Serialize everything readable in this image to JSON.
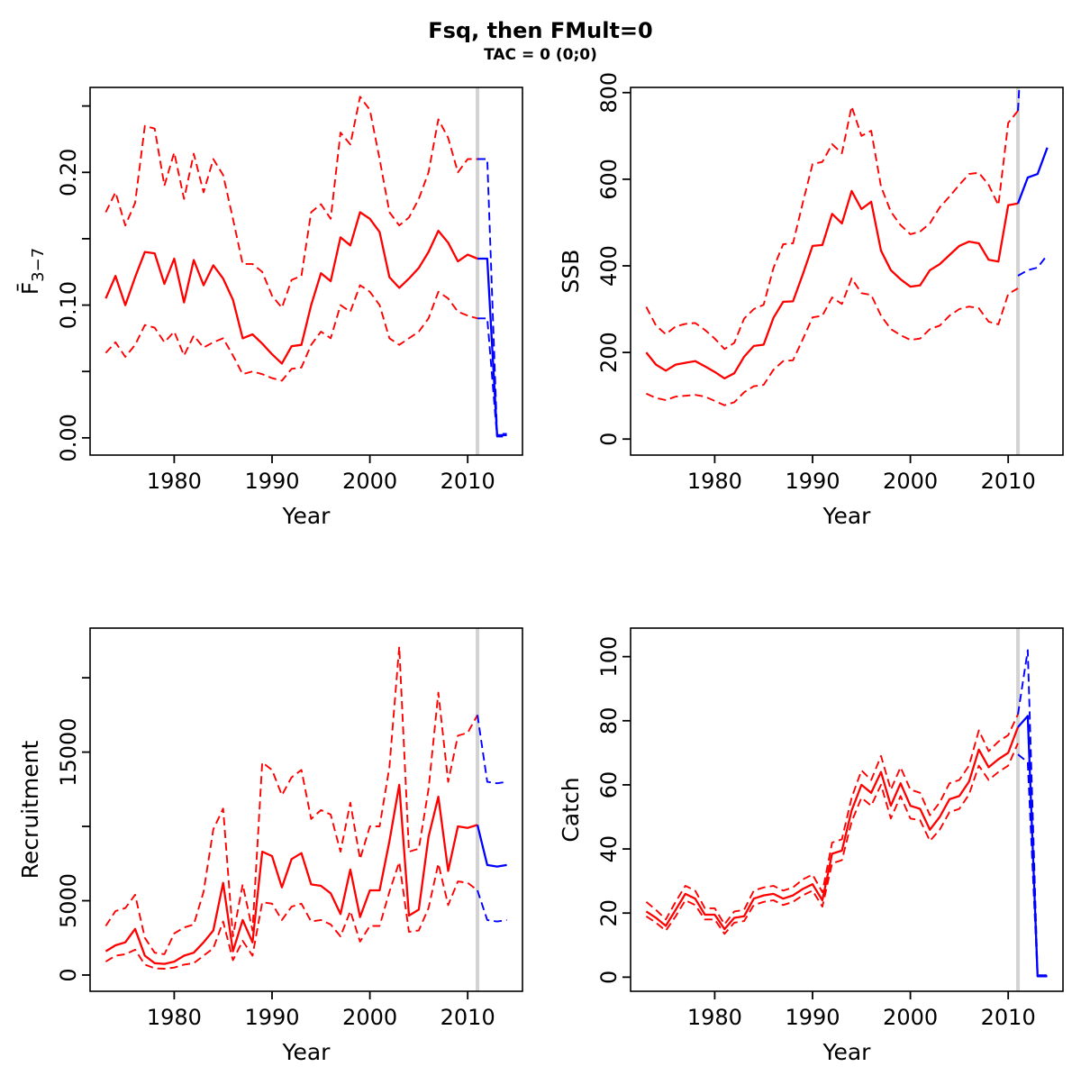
{
  "title": "Fsq, then FMult=0",
  "subtitle": "TAC = 0 (0;0)",
  "colors": {
    "history": "#ff0000",
    "projection": "#0000ff",
    "divider": "#d3d3d3",
    "axis": "#000000",
    "background": "#ffffff"
  },
  "projection_divider_year": 2011,
  "history_years": [
    1973,
    1974,
    1975,
    1976,
    1977,
    1978,
    1979,
    1980,
    1981,
    1982,
    1983,
    1984,
    1985,
    1986,
    1987,
    1988,
    1989,
    1990,
    1991,
    1992,
    1993,
    1994,
    1995,
    1996,
    1997,
    1998,
    1999,
    2000,
    2001,
    2002,
    2003,
    2004,
    2005,
    2006,
    2007,
    2008,
    2009,
    2010,
    2011
  ],
  "projection_years": [
    2011,
    2012,
    2013,
    2014
  ],
  "chart_data": [
    {
      "type": "line",
      "panel": "top-left",
      "title": "",
      "xlabel": "Year",
      "ylabel": {
        "main": "F̄",
        "sub": "3−7"
      },
      "xlim": [
        1971.4,
        2015.6
      ],
      "ylim": [
        -0.013,
        0.264
      ],
      "xticks": {
        "values": [
          1980,
          1990,
          2000,
          2010
        ],
        "labels": [
          "1980",
          "1990",
          "2000",
          "2010"
        ]
      },
      "yticks": {
        "values": [
          0,
          0.05,
          0.1,
          0.15,
          0.2,
          0.25
        ],
        "labels": [
          "0.00",
          "",
          "0.10",
          "",
          "0.20",
          ""
        ]
      },
      "series": [
        {
          "name": "fbar-ci-upper-history",
          "period": "history",
          "style": "dashed",
          "color_key": "history",
          "values": [
            0.17,
            0.185,
            0.16,
            0.177,
            0.235,
            0.233,
            0.19,
            0.215,
            0.18,
            0.214,
            0.185,
            0.21,
            0.198,
            0.165,
            0.131,
            0.131,
            0.125,
            0.107,
            0.098,
            0.119,
            0.122,
            0.17,
            0.176,
            0.165,
            0.23,
            0.221,
            0.257,
            0.247,
            0.21,
            0.17,
            0.16,
            0.166,
            0.18,
            0.2,
            0.24,
            0.226,
            0.2,
            0.21,
            0.21
          ]
        },
        {
          "name": "fbar-ci-lower-history",
          "period": "history",
          "style": "dashed",
          "color_key": "history",
          "values": [
            0.064,
            0.072,
            0.061,
            0.07,
            0.085,
            0.083,
            0.072,
            0.08,
            0.062,
            0.077,
            0.068,
            0.072,
            0.075,
            0.062,
            0.048,
            0.05,
            0.048,
            0.045,
            0.043,
            0.052,
            0.053,
            0.07,
            0.08,
            0.075,
            0.1,
            0.095,
            0.115,
            0.11,
            0.1,
            0.075,
            0.07,
            0.075,
            0.08,
            0.09,
            0.11,
            0.105,
            0.095,
            0.092,
            0.09
          ]
        },
        {
          "name": "fbar-median-history",
          "period": "history",
          "style": "solid",
          "color_key": "history",
          "values": [
            0.105,
            0.122,
            0.1,
            0.121,
            0.14,
            0.139,
            0.116,
            0.135,
            0.102,
            0.134,
            0.115,
            0.13,
            0.12,
            0.104,
            0.075,
            0.078,
            0.071,
            0.063,
            0.056,
            0.069,
            0.07,
            0.1,
            0.124,
            0.118,
            0.151,
            0.145,
            0.17,
            0.165,
            0.155,
            0.121,
            0.113,
            0.12,
            0.128,
            0.14,
            0.156,
            0.147,
            0.133,
            0.138,
            0.135
          ]
        },
        {
          "name": "fbar-ci-upper-projection",
          "period": "projection",
          "style": "dashed",
          "color_key": "projection",
          "values": [
            0.21,
            0.21,
            0.003,
            0.003
          ]
        },
        {
          "name": "fbar-ci-lower-projection",
          "period": "projection",
          "style": "dashed",
          "color_key": "projection",
          "values": [
            0.09,
            0.09,
            0.001,
            0.001
          ]
        },
        {
          "name": "fbar-median-projection",
          "period": "projection",
          "style": "solid",
          "color_key": "projection",
          "values": [
            0.135,
            0.135,
            0.002,
            0.002
          ]
        }
      ]
    },
    {
      "type": "line",
      "panel": "top-right",
      "title": "",
      "xlabel": "Year",
      "ylabel": {
        "main": "SSB",
        "sub": ""
      },
      "xlim": [
        1971.4,
        2015.6
      ],
      "ylim": [
        -37,
        812
      ],
      "xticks": {
        "values": [
          1980,
          1990,
          2000,
          2010
        ],
        "labels": [
          "1980",
          "1990",
          "2000",
          "2010"
        ]
      },
      "yticks": {
        "values": [
          0,
          200,
          400,
          600,
          800
        ],
        "labels": [
          "0",
          "200",
          "400",
          "600",
          "800"
        ]
      },
      "series": [
        {
          "name": "ssb-ci-upper-history",
          "period": "history",
          "style": "dashed",
          "color_key": "history",
          "values": [
            305,
            262,
            242,
            260,
            266,
            268,
            252,
            232,
            208,
            222,
            278,
            300,
            310,
            395,
            450,
            452,
            545,
            635,
            640,
            681,
            660,
            768,
            700,
            712,
            583,
            525,
            494,
            473,
            479,
            498,
            535,
            560,
            587,
            612,
            615,
            587,
            540,
            730,
            758
          ]
        },
        {
          "name": "ssb-ci-lower-history",
          "period": "history",
          "style": "dashed",
          "color_key": "history",
          "values": [
            105,
            95,
            90,
            98,
            100,
            102,
            98,
            88,
            78,
            85,
            108,
            122,
            125,
            160,
            180,
            182,
            230,
            281,
            285,
            327,
            312,
            371,
            337,
            333,
            285,
            254,
            240,
            229,
            232,
            254,
            262,
            285,
            300,
            306,
            302,
            271,
            265,
            335,
            348
          ]
        },
        {
          "name": "ssb-median-history",
          "period": "history",
          "style": "solid",
          "color_key": "history",
          "values": [
            200,
            172,
            158,
            172,
            176,
            180,
            168,
            155,
            140,
            152,
            190,
            215,
            218,
            280,
            317,
            318,
            380,
            446,
            448,
            520,
            498,
            573,
            531,
            548,
            435,
            390,
            369,
            352,
            355,
            390,
            404,
            425,
            446,
            456,
            452,
            414,
            410,
            540,
            544
          ]
        },
        {
          "name": "ssb-ci-upper-projection",
          "period": "projection",
          "style": "dashed",
          "color_key": "projection",
          "values": [
            758,
            1150,
            1150,
            1150
          ]
        },
        {
          "name": "ssb-ci-lower-projection",
          "period": "projection",
          "style": "dashed",
          "color_key": "projection",
          "values": [
            377,
            390,
            396,
            425
          ]
        },
        {
          "name": "ssb-median-projection",
          "period": "projection",
          "style": "solid",
          "color_key": "projection",
          "values": [
            544,
            604,
            612,
            673
          ]
        }
      ]
    },
    {
      "type": "line",
      "panel": "bottom-left",
      "title": "",
      "xlabel": "Year",
      "ylabel": {
        "main": "Recruitment",
        "sub": ""
      },
      "xlim": [
        1971.4,
        2015.6
      ],
      "ylim": [
        -1094,
        23343
      ],
      "xticks": {
        "values": [
          1980,
          1990,
          2000,
          2010
        ],
        "labels": [
          "1980",
          "1990",
          "2000",
          "2010"
        ]
      },
      "yticks": {
        "values": [
          0,
          5000,
          10000,
          15000,
          20000
        ],
        "labels": [
          "0",
          "5000",
          "",
          "15000",
          ""
        ]
      },
      "series": [
        {
          "name": "recruitment-ci-upper-history",
          "period": "history",
          "style": "dashed",
          "color_key": "history",
          "values": [
            3300,
            4300,
            4500,
            5400,
            2500,
            1500,
            1400,
            2800,
            3200,
            3400,
            5600,
            9800,
            11200,
            2600,
            6100,
            3000,
            14300,
            13800,
            12100,
            13300,
            13800,
            10500,
            11100,
            10800,
            8300,
            11600,
            7800,
            10000,
            10000,
            14000,
            22100,
            8300,
            8500,
            12500,
            19000,
            13000,
            16100,
            16300,
            17500
          ]
        },
        {
          "name": "recruitment-ci-lower-history",
          "period": "history",
          "style": "dashed",
          "color_key": "history",
          "values": [
            900,
            1300,
            1400,
            1700,
            700,
            450,
            420,
            500,
            700,
            800,
            1300,
            1800,
            3600,
            1000,
            2300,
            1300,
            4900,
            4800,
            3700,
            4600,
            4800,
            3600,
            3700,
            3400,
            2600,
            4300,
            2250,
            3300,
            3300,
            5600,
            7600,
            2900,
            3000,
            4500,
            7500,
            4700,
            6300,
            6200,
            5700
          ]
        },
        {
          "name": "recruitment-median-history",
          "period": "history",
          "style": "solid",
          "color_key": "history",
          "values": [
            1600,
            2000,
            2200,
            3100,
            1300,
            800,
            750,
            900,
            1300,
            1500,
            2200,
            3000,
            6200,
            1600,
            3700,
            2200,
            8300,
            8000,
            5900,
            7800,
            8200,
            6100,
            6000,
            5500,
            4100,
            7100,
            3900,
            5700,
            5700,
            9000,
            12800,
            4000,
            4400,
            9300,
            12000,
            7000,
            10000,
            9900,
            10100
          ]
        },
        {
          "name": "recruitment-ci-upper-projection",
          "period": "projection",
          "style": "dashed",
          "color_key": "projection",
          "values": [
            17500,
            13000,
            12900,
            13000
          ]
        },
        {
          "name": "recruitment-ci-lower-projection",
          "period": "projection",
          "style": "dashed",
          "color_key": "projection",
          "values": [
            5700,
            3700,
            3600,
            3700
          ]
        },
        {
          "name": "recruitment-median-projection",
          "period": "projection",
          "style": "solid",
          "color_key": "projection",
          "values": [
            10100,
            7400,
            7300,
            7400
          ]
        }
      ]
    },
    {
      "type": "line",
      "panel": "bottom-right",
      "title": "",
      "xlabel": "Year",
      "ylabel": {
        "main": "Catch",
        "sub": ""
      },
      "xlim": [
        1971.4,
        2015.6
      ],
      "ylim": [
        -4.4,
        108.9
      ],
      "xticks": {
        "values": [
          1980,
          1990,
          2000,
          2010
        ],
        "labels": [
          "1980",
          "1990",
          "2000",
          "2010"
        ]
      },
      "yticks": {
        "values": [
          0,
          20,
          40,
          60,
          80,
          100
        ],
        "labels": [
          "0",
          "20",
          "40",
          "60",
          "80",
          "100"
        ]
      },
      "series": [
        {
          "name": "catch-ci-upper-history",
          "period": "history",
          "style": "dashed",
          "color_key": "history",
          "values": [
            23.5,
            21,
            18,
            23.5,
            28.5,
            27,
            21.5,
            21.5,
            16.5,
            20.5,
            21,
            27,
            28,
            28.5,
            27,
            28,
            30.5,
            32,
            26.5,
            42,
            43,
            56,
            64.5,
            61.5,
            69,
            58.5,
            65.5,
            58.5,
            57.5,
            50.5,
            54.5,
            60.5,
            61.5,
            66,
            77,
            70.5,
            73.5,
            75.5,
            82
          ]
        },
        {
          "name": "catch-ci-lower-history",
          "period": "history",
          "style": "dashed",
          "color_key": "history",
          "values": [
            19,
            17,
            14.5,
            19,
            24,
            22.5,
            18,
            18,
            13.5,
            17,
            17.5,
            22.5,
            23.5,
            24,
            22.5,
            23.5,
            25.5,
            27,
            22,
            35.5,
            36.5,
            48.5,
            56,
            53.5,
            60,
            49.5,
            56.5,
            49.5,
            49,
            42.5,
            46,
            51.5,
            52.5,
            57,
            66,
            61.5,
            64,
            66,
            73
          ]
        },
        {
          "name": "catch-median-history",
          "period": "history",
          "style": "solid",
          "color_key": "history",
          "values": [
            20.5,
            18.5,
            16,
            21,
            26,
            24.5,
            19.5,
            19.5,
            15,
            18.5,
            19,
            24.5,
            25.5,
            26,
            24.5,
            25.5,
            27.5,
            29,
            24,
            38.5,
            39.5,
            52,
            60,
            57.5,
            64,
            53.5,
            60.5,
            53.5,
            52.5,
            46,
            50,
            55.5,
            56.5,
            61,
            71,
            65.5,
            68,
            70,
            78
          ]
        },
        {
          "name": "catch-ci-upper-projection",
          "period": "projection",
          "style": "dashed",
          "color_key": "projection",
          "values": [
            82,
            102,
            0.6,
            0.6
          ]
        },
        {
          "name": "catch-ci-lower-projection",
          "period": "projection",
          "style": "dashed",
          "color_key": "projection",
          "values": [
            69.5,
            67,
            0.2,
            0.2
          ]
        },
        {
          "name": "catch-median-projection",
          "period": "projection",
          "style": "solid",
          "color_key": "projection",
          "values": [
            78,
            81.5,
            0.3,
            0.3
          ]
        }
      ]
    }
  ]
}
